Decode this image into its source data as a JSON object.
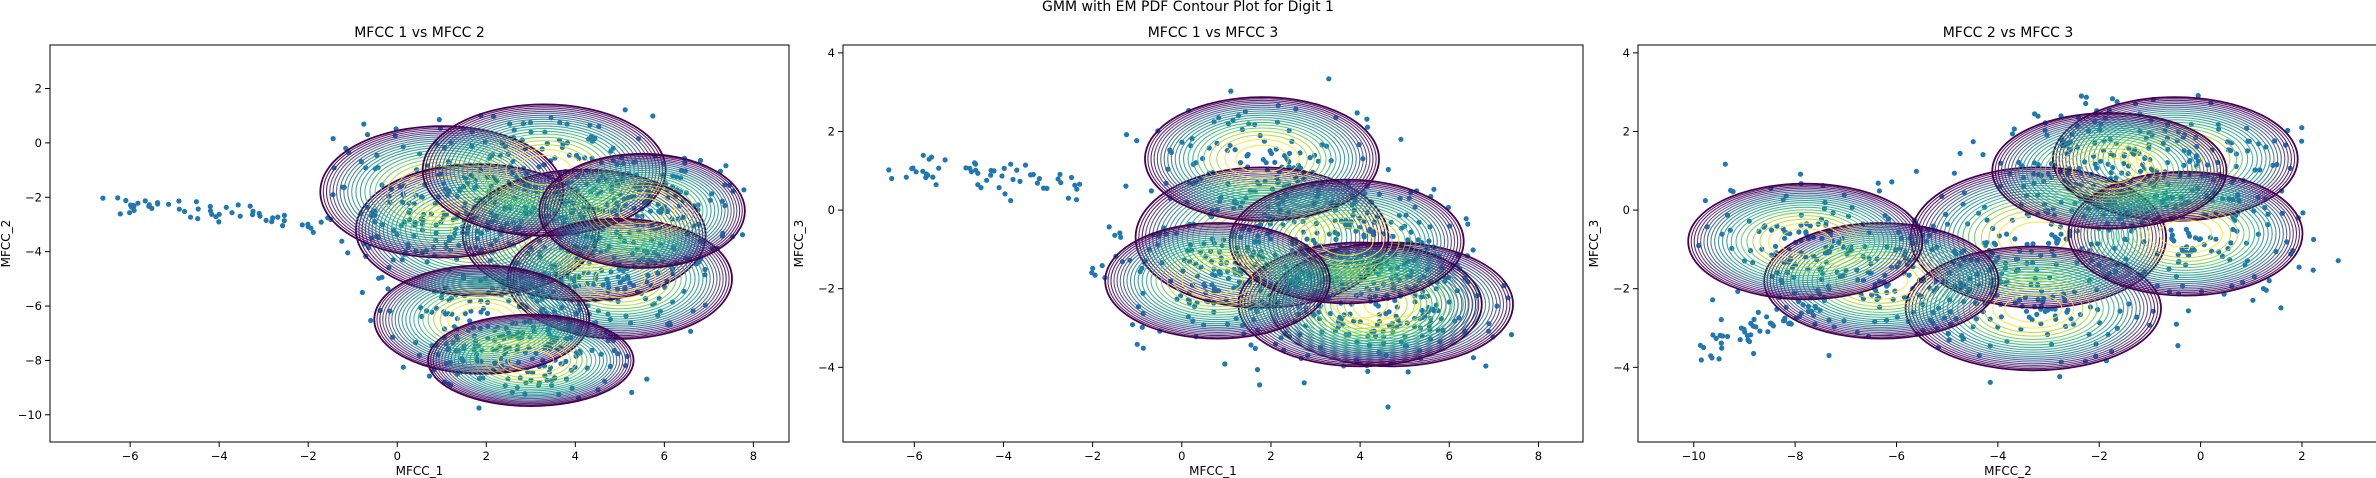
{
  "figure": {
    "suptitle": "GMM with EM PDF Contour Plot for Digit 1"
  },
  "chart_data": [
    {
      "type": "scatter",
      "title": "MFCC 1 vs MFCC 2",
      "xlabel": "MFCC_1",
      "ylabel": "MFCC_2",
      "xlim": [
        -7.8,
        8.8
      ],
      "ylim": [
        -11.0,
        3.6
      ],
      "xticks": [
        -6,
        -4,
        -2,
        0,
        2,
        4,
        6,
        8
      ],
      "yticks": [
        -10,
        -8,
        -6,
        -4,
        -2,
        0,
        2
      ],
      "point_color": "#1f77b4",
      "components": [
        {
          "mean": [
            1.8,
            -3.2
          ],
          "sd": [
            2.6,
            2.3
          ]
        },
        {
          "mean": [
            4.2,
            -3.4
          ],
          "sd": [
            2.6,
            2.3
          ]
        },
        {
          "mean": [
            1.0,
            -1.8
          ],
          "sd": [
            2.6,
            2.3
          ]
        },
        {
          "mean": [
            3.3,
            -1.0
          ],
          "sd": [
            2.6,
            2.3
          ]
        },
        {
          "mean": [
            5.0,
            -5.0
          ],
          "sd": [
            2.4,
            2.1
          ]
        },
        {
          "mean": [
            1.9,
            -6.5
          ],
          "sd": [
            2.3,
            1.9
          ]
        },
        {
          "mean": [
            3.0,
            -8.0
          ],
          "sd": [
            2.2,
            1.6
          ]
        },
        {
          "mean": [
            5.5,
            -2.5
          ],
          "sd": [
            2.2,
            2.0
          ]
        }
      ],
      "tail": {
        "from": [
          -6.5,
          -2.1
        ],
        "to": [
          -1.5,
          -3.0
        ]
      },
      "cloud": {
        "x": [
          -1.0,
          7.6
        ],
        "y": [
          -10.2,
          0.8
        ]
      }
    },
    {
      "type": "scatter",
      "title": "MFCC 1 vs MFCC 3",
      "xlabel": "MFCC_1",
      "ylabel": "MFCC_3",
      "xlim": [
        -7.6,
        9.0
      ],
      "ylim": [
        -5.9,
        4.2
      ],
      "xticks": [
        -6,
        -4,
        -2,
        0,
        2,
        4,
        6,
        8
      ],
      "yticks": [
        -4,
        -2,
        0,
        2,
        4
      ],
      "point_color": "#1f77b4",
      "components": [
        {
          "mean": [
            1.8,
            -0.7
          ],
          "sd": [
            2.7,
            1.7
          ]
        },
        {
          "mean": [
            1.8,
            1.3
          ],
          "sd": [
            2.5,
            1.5
          ]
        },
        {
          "mean": [
            4.7,
            -2.4
          ],
          "sd": [
            2.6,
            1.5
          ]
        },
        {
          "mean": [
            4.0,
            -2.4
          ],
          "sd": [
            2.6,
            1.5
          ]
        },
        {
          "mean": [
            3.7,
            -0.8
          ],
          "sd": [
            2.5,
            1.5
          ]
        },
        {
          "mean": [
            0.8,
            -1.8
          ],
          "sd": [
            2.4,
            1.4
          ]
        }
      ],
      "tail": {
        "from": [
          -6.3,
          1.1
        ],
        "to": [
          -2.5,
          0.6
        ]
      },
      "cloud": {
        "x": [
          -2.0,
          7.5
        ],
        "y": [
          -4.8,
          2.8
        ]
      }
    },
    {
      "type": "scatter",
      "title": "MFCC 2 vs MFCC 3",
      "xlabel": "MFCC_2",
      "ylabel": "MFCC_3",
      "xlim": [
        -11.1,
        3.5
      ],
      "ylim": [
        -5.9,
        4.2
      ],
      "xticks": [
        -10,
        -8,
        -6,
        -4,
        -2,
        0,
        2
      ],
      "yticks": [
        -4,
        -2,
        0,
        2,
        4
      ],
      "point_color": "#1f77b4",
      "components": [
        {
          "mean": [
            -3.2,
            -0.7
          ],
          "sd": [
            2.4,
            1.7
          ]
        },
        {
          "mean": [
            -0.5,
            1.3
          ],
          "sd": [
            2.3,
            1.5
          ]
        },
        {
          "mean": [
            -3.3,
            -2.5
          ],
          "sd": [
            2.4,
            1.5
          ]
        },
        {
          "mean": [
            -6.3,
            -1.8
          ],
          "sd": [
            2.2,
            1.4
          ]
        },
        {
          "mean": [
            -7.8,
            -0.8
          ],
          "sd": [
            2.2,
            1.4
          ]
        },
        {
          "mean": [
            -0.3,
            -0.6
          ],
          "sd": [
            2.2,
            1.5
          ]
        },
        {
          "mean": [
            -1.8,
            1.0
          ],
          "sd": [
            2.2,
            1.4
          ]
        }
      ],
      "tail": {
        "from": [
          -9.8,
          -3.6
        ],
        "to": [
          -7.5,
          -2.2
        ]
      },
      "cloud": {
        "x": [
          -9.5,
          2.5
        ],
        "y": [
          -4.8,
          2.6
        ]
      }
    }
  ]
}
